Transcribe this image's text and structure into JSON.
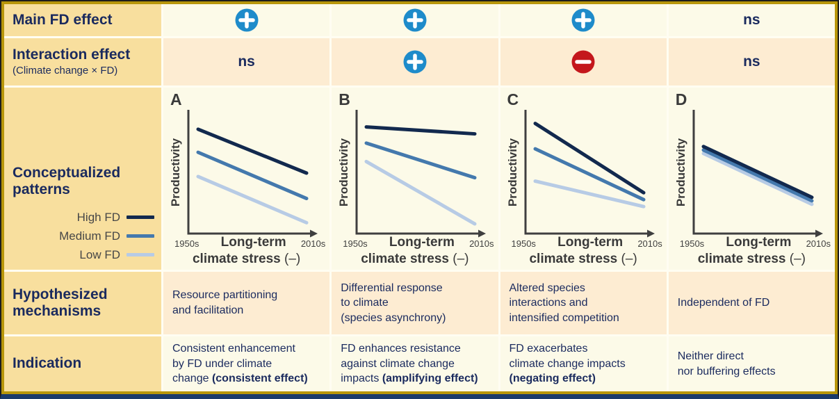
{
  "colors": {
    "label_bg": "#f8df9e",
    "row_light_bg": "#fcfae8",
    "row_peach_bg": "#fdecd2",
    "gold_border": "#b8960a",
    "bottom_bar": "#1a3a6b",
    "navy_text": "#1a2a5e",
    "axis_gray": "#3f3f3f",
    "plus_icon": "#1e8bca",
    "minus_icon": "#c4171c"
  },
  "label_column": {
    "main_effect": "Main FD effect",
    "interaction": "Interaction effect",
    "interaction_sub": "(Climate change × FD)",
    "patterns": "Conceptualized\npatterns",
    "mechanisms": "Hypothesized\nmechanisms",
    "indication": "Indication"
  },
  "effects": {
    "ns_label": "ns",
    "main": [
      "plus",
      "plus",
      "plus",
      "ns"
    ],
    "interaction": [
      "ns",
      "plus",
      "minus",
      "ns"
    ]
  },
  "legend": [
    {
      "label": "High FD",
      "color": "#12294e"
    },
    {
      "label": "Medium FD",
      "color": "#4479ad"
    },
    {
      "label": "Low FD",
      "color": "#b7cbe5"
    }
  ],
  "mechanisms": [
    "Resource partitioning\nand facilitation",
    "Differential response\nto climate\n(species asynchrony)",
    "Altered species\ninteractions and\nintensified competition",
    "Independent of FD"
  ],
  "indication": [
    [
      {
        "t": "Consistent enhancement\nby FD under climate\nchange ",
        "b": false
      },
      {
        "t": "(consistent effect)",
        "b": true
      }
    ],
    [
      {
        "t": "FD enhances resistance\nagainst climate change\nimpacts ",
        "b": false
      },
      {
        "t": "(amplifying effect)",
        "b": true
      }
    ],
    [
      {
        "t": "FD exacerbates\nclimate change impacts\n",
        "b": false
      },
      {
        "t": "(negating effect)",
        "b": true
      }
    ],
    [
      {
        "t": "Neither direct\nnor buffering effects",
        "b": false
      }
    ]
  ],
  "chart_data": {
    "type": "line",
    "x": [
      "1950s",
      "2010s"
    ],
    "xlabel_line1": "Long-term",
    "xlabel_line2_bold": "climate stress",
    "xlabel_line2_tail": "(–)",
    "ylabel": "Productivity",
    "ylim": [
      0,
      100
    ],
    "panels": [
      {
        "label": "A",
        "pattern": "parallel declining lines (consistent FD effect)",
        "series": [
          {
            "name": "High FD",
            "values": [
              88,
              50
            ]
          },
          {
            "name": "Medium FD",
            "values": [
              68,
              28
            ]
          },
          {
            "name": "Low FD",
            "values": [
              47,
              7
            ]
          }
        ]
      },
      {
        "label": "B",
        "pattern": "diverging declining lines (amplifying FD effect)",
        "series": [
          {
            "name": "High FD",
            "values": [
              90,
              84
            ]
          },
          {
            "name": "Medium FD",
            "values": [
              76,
              46
            ]
          },
          {
            "name": "Low FD",
            "values": [
              60,
              6
            ]
          }
        ]
      },
      {
        "label": "C",
        "pattern": "converging declining lines (negating FD effect)",
        "series": [
          {
            "name": "High FD",
            "values": [
              93,
              33
            ]
          },
          {
            "name": "Medium FD",
            "values": [
              71,
              27
            ]
          },
          {
            "name": "Low FD",
            "values": [
              43,
              21
            ]
          }
        ]
      },
      {
        "label": "D",
        "pattern": "overlapping declining lines (no FD effect)",
        "series": [
          {
            "name": "High FD",
            "values": [
              73,
              29
            ]
          },
          {
            "name": "Medium FD",
            "values": [
              70,
              26
            ]
          },
          {
            "name": "Low FD",
            "values": [
              67,
              23
            ]
          }
        ]
      }
    ]
  }
}
